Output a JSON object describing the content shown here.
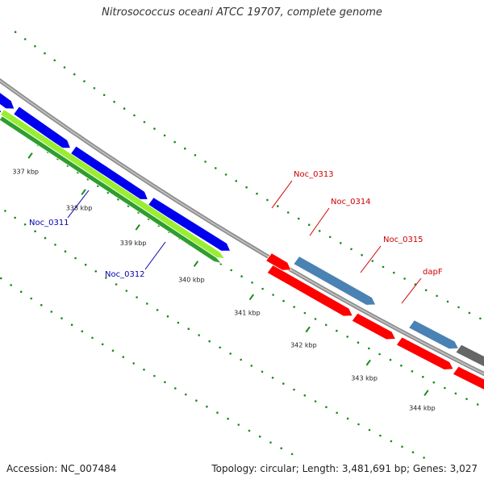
{
  "title": "Nitrosococcus oceani ATCC 19707, complete genome",
  "footer": {
    "accession": "Accession: NC_007484",
    "summary": "Topology: circular; Length: 3,481,691 bp; Genes: 3,027"
  },
  "colors": {
    "background": "#ffffff",
    "backbone": "#888888",
    "tick": "#1a8a1a",
    "cds_blue": "#0000ee",
    "cds_red": "#ff0000",
    "cds_green": "#2e9e2e",
    "cds_lightgreen": "#99ee33",
    "cds_steelblue": "#4a82b4",
    "cds_gray": "#666666",
    "cds_magenta": "#ff1aa0",
    "label_blue": "#0000aa",
    "label_red": "#cc0000"
  },
  "tick_labels": [
    "337 kbp",
    "338 kbp",
    "339 kbp",
    "340 kbp",
    "341 kbp",
    "342 kbp",
    "343 kbp",
    "344 kbp"
  ],
  "gene_labels": [
    {
      "text": "Noc_0311",
      "color": "blue"
    },
    {
      "text": "Noc_0312",
      "color": "blue"
    },
    {
      "text": "Noc_0313",
      "color": "red"
    },
    {
      "text": "Noc_0314",
      "color": "red"
    },
    {
      "text": "Noc_0315",
      "color": "red"
    },
    {
      "text": "dapF",
      "color": "red"
    }
  ]
}
